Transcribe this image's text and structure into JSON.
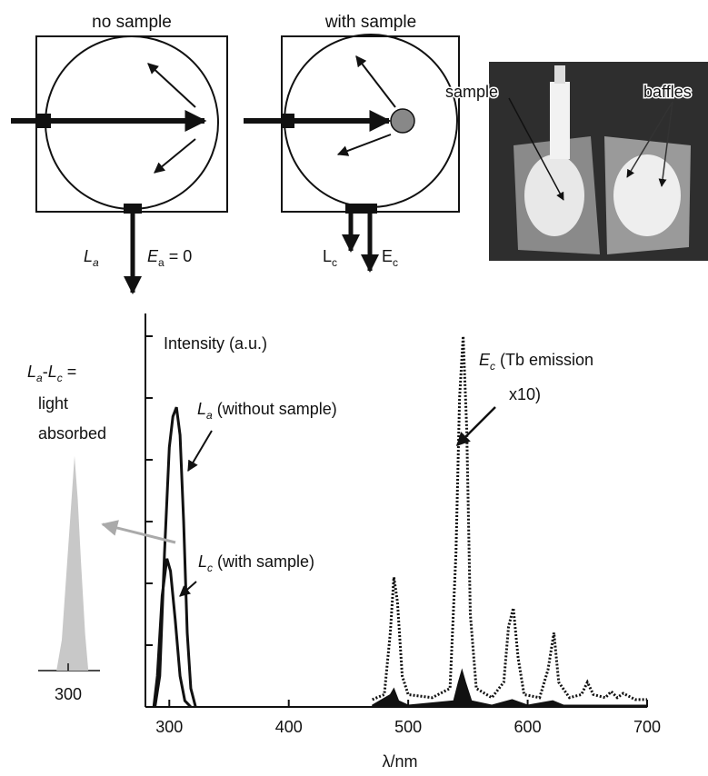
{
  "figure": {
    "no_sample": {
      "title": "no sample",
      "L": {
        "main": "L",
        "sub": "a"
      },
      "E": {
        "main": "E",
        "sub": "a",
        "rest": " = 0"
      }
    },
    "with_sample": {
      "title": "with sample",
      "L": {
        "main": "L",
        "sub": "c"
      },
      "E": {
        "main": "E",
        "sub": "c"
      }
    },
    "photo": {
      "sample": "sample",
      "baffles": "baffles"
    }
  },
  "chart_data": [
    {
      "type": "line",
      "ylabel": "Intensity (a.u.)",
      "xlabel": "λ/nm",
      "xlim": [
        280,
        700
      ],
      "xticks": [
        300,
        400,
        500,
        600,
        700
      ],
      "ylim": [
        0,
        60
      ],
      "yticks": [
        0,
        10,
        20,
        30,
        40,
        50,
        60
      ],
      "annotations": {
        "la": {
          "main": "L",
          "sub": "a",
          "rest": " (without sample)"
        },
        "lc": {
          "main": "L",
          "sub": "c",
          "rest": " (with sample)"
        },
        "ec": {
          "main": "E",
          "sub": "c",
          "rest": " (Tb emission",
          "line2": "x10)"
        }
      },
      "series": [
        {
          "color": "#111111",
          "style": "solid",
          "x": [
            288,
            292,
            296,
            300,
            303,
            306,
            309,
            312,
            315,
            318,
            322
          ],
          "values": [
            0,
            5,
            25,
            42,
            47,
            48.5,
            44,
            30,
            12,
            3,
            0
          ]
        },
        {
          "color": "#111111",
          "style": "solid",
          "x": [
            287,
            290,
            294,
            298,
            301,
            305,
            309,
            313,
            318
          ],
          "values": [
            0,
            5,
            18,
            24,
            22,
            14,
            5,
            1,
            0
          ]
        },
        {
          "color": "#111111",
          "style": "dotted",
          "x": [
            470,
            480,
            485,
            488,
            491,
            495,
            500,
            520,
            535,
            540,
            543,
            546,
            549,
            552,
            557,
            570,
            580,
            584,
            588,
            592,
            597,
            610,
            617,
            622,
            626,
            635,
            645,
            650,
            655,
            665,
            670,
            675,
            680,
            690,
            700
          ],
          "values": [
            1.2,
            2,
            12,
            21,
            17,
            5,
            2,
            1.5,
            3,
            25,
            50,
            60,
            45,
            15,
            3,
            1.5,
            4,
            13,
            16,
            8,
            2,
            1.5,
            6,
            12,
            4,
            1.5,
            2,
            4,
            2,
            1.5,
            2.5,
            1.5,
            2.2,
            1.2,
            1.2
          ]
        },
        {
          "color": "#111111",
          "style": "filled",
          "x": [
            470,
            485,
            488,
            492,
            500,
            538,
            542,
            545,
            548,
            553,
            570,
            587,
            600,
            621,
            630,
            700
          ],
          "values": [
            0.3,
            2,
            3,
            1,
            0.3,
            1,
            4,
            6,
            4,
            1,
            0.3,
            1.2,
            0.3,
            1,
            0.3,
            0.3
          ]
        }
      ]
    },
    {
      "type": "area",
      "title": {
        "line1": {
          "main": "L",
          "sub": "a",
          "rest": "-",
          "main2": "L",
          "sub2": "c",
          "rest2": " ="
        },
        "line2": "light",
        "line3": "absorbed"
      },
      "xlim": [
        270,
        330
      ],
      "xticks": [
        300
      ],
      "ylim": [
        0,
        36
      ],
      "color": "#c8c8c8",
      "x": [
        289,
        294,
        298,
        302,
        306,
        309,
        312,
        316,
        319
      ],
      "values": [
        0,
        5,
        15,
        25,
        35,
        28,
        18,
        6,
        0
      ]
    }
  ]
}
